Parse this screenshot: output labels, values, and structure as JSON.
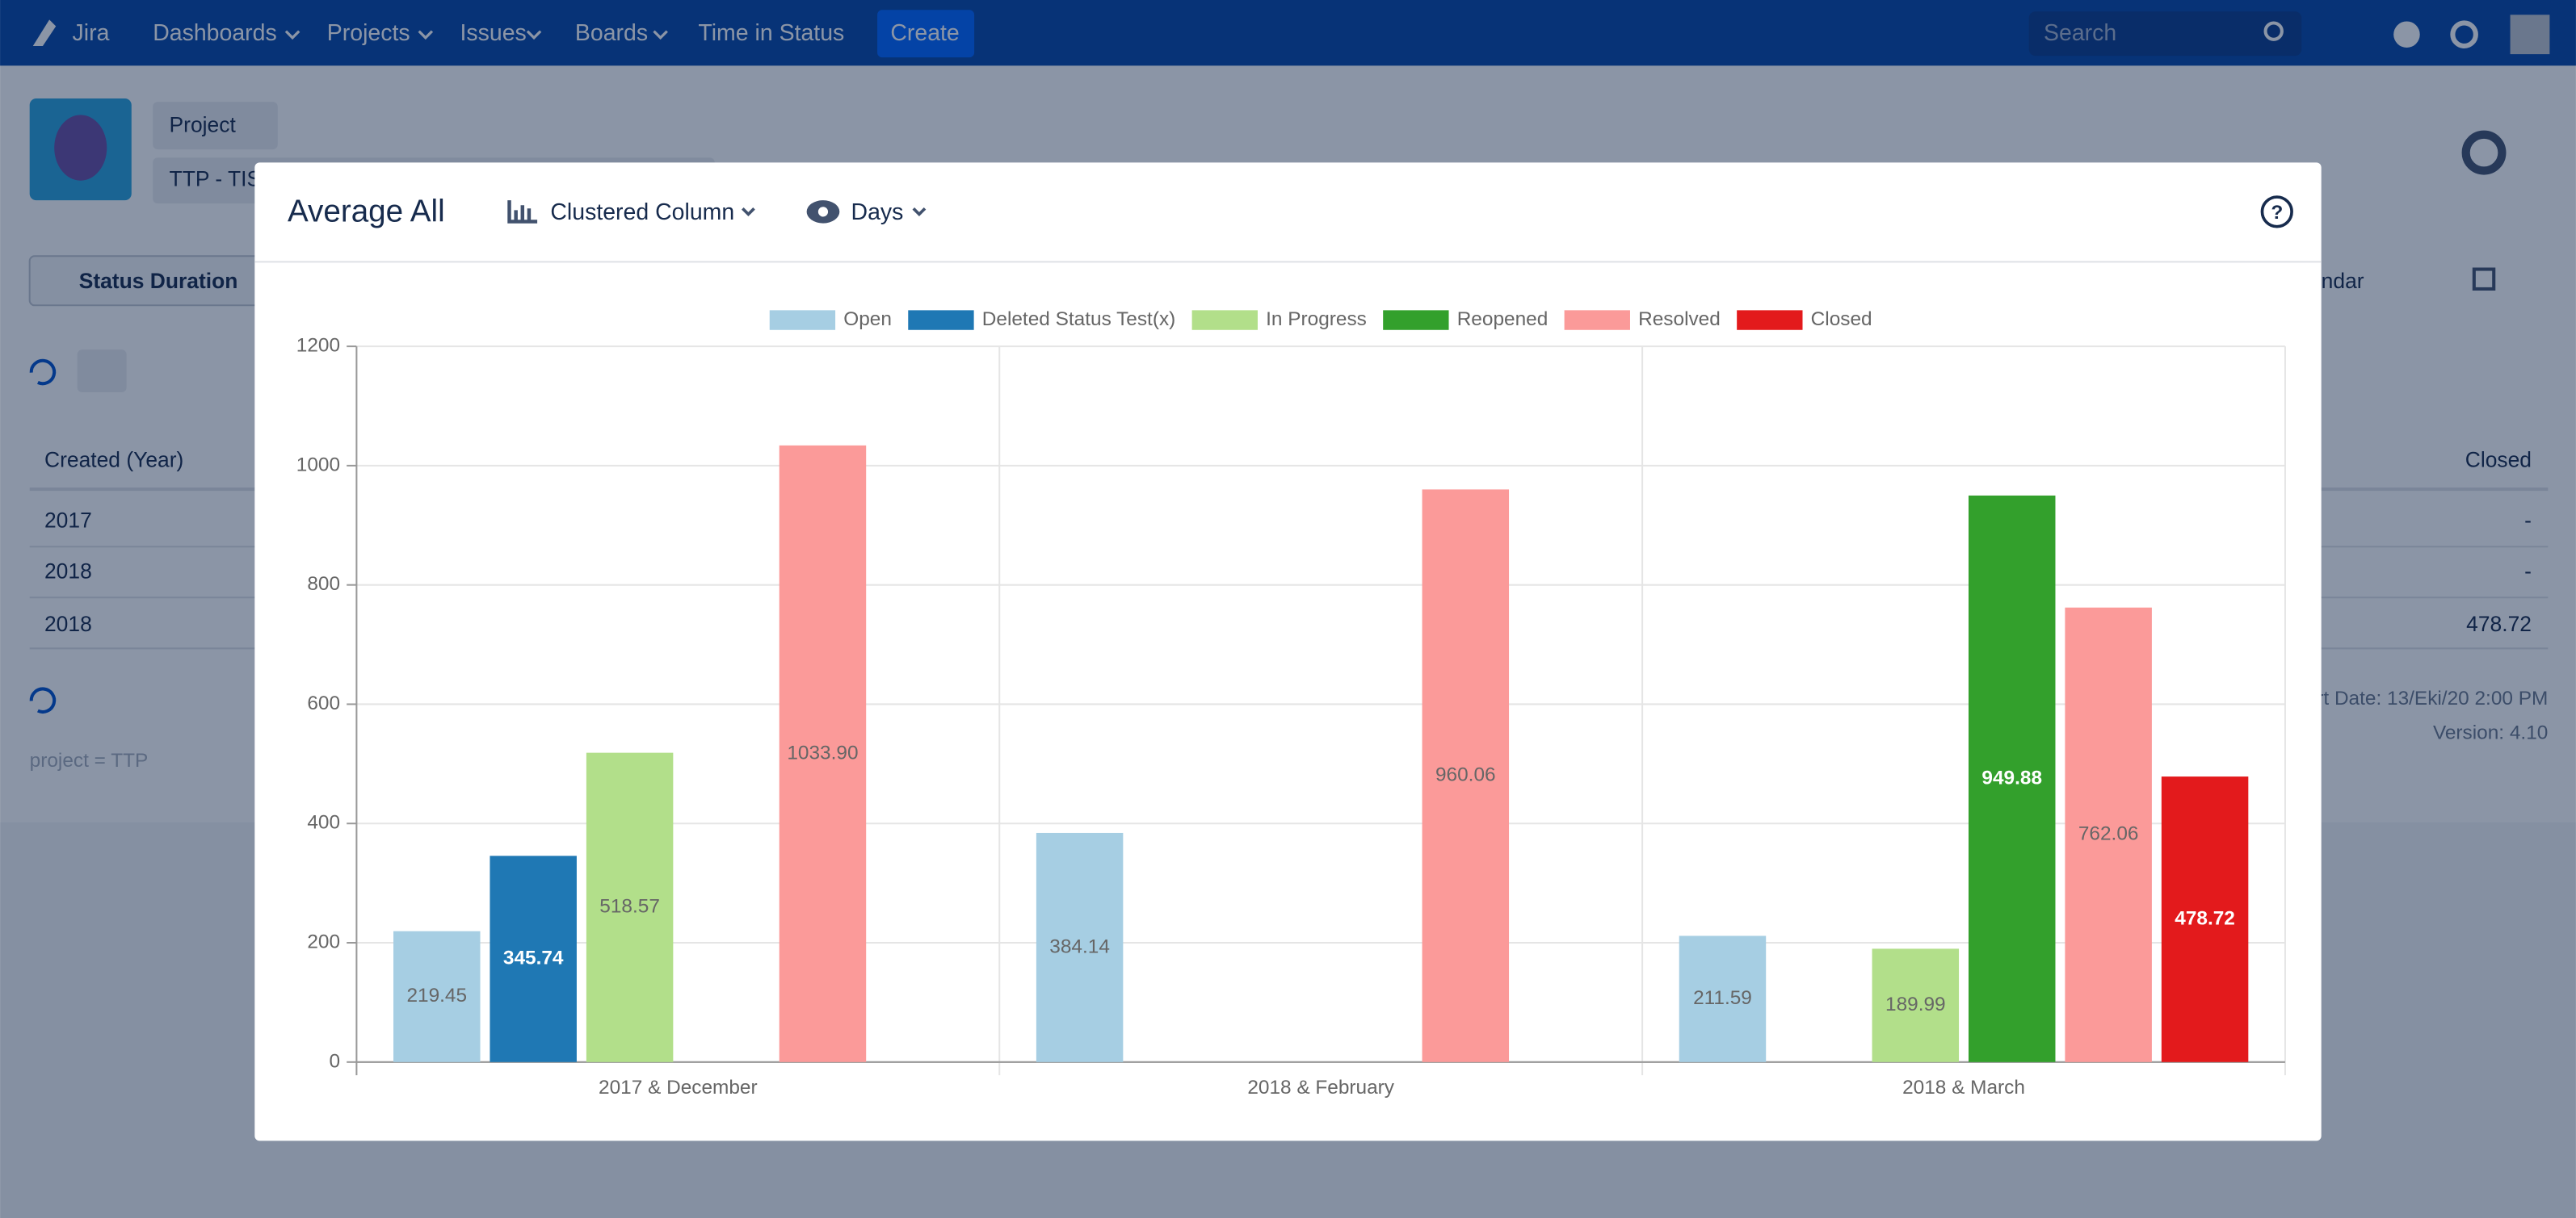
{
  "nav": {
    "logo": "Jira",
    "items": [
      "Dashboards",
      "Projects",
      "Issues",
      "Boards",
      "Time in Status"
    ],
    "create": "Create",
    "search": "Search"
  },
  "page": {
    "project_button": "Project",
    "project_name": "TTP - TIS",
    "status_button": "Status Duration",
    "calendar_button": "ndar",
    "table": {
      "headers": [
        "Created (Year)",
        "Closed"
      ],
      "rows": [
        [
          "2017",
          "-"
        ],
        [
          "2018",
          "-"
        ],
        [
          "2018",
          "478.72"
        ]
      ]
    },
    "report_date": "rt Date: 13/Eki/20 2:00 PM",
    "version": "Version: 4.10",
    "query": "project = TTP"
  },
  "modal": {
    "title": "Average All",
    "chart_type": "Clustered Column",
    "unit": "Days"
  },
  "chart_data": {
    "type": "bar",
    "legend": "top",
    "grid": true,
    "categories": [
      "2017 & December",
      "2018 & February",
      "2018 & March"
    ],
    "ylim": [
      0,
      1200
    ],
    "yticks": [
      0,
      200,
      400,
      600,
      800,
      1000,
      1200
    ],
    "series": [
      {
        "name": "Open",
        "color": "#a6cee3",
        "values": [
          219.45,
          384.14,
          211.59
        ],
        "value_labels": [
          "219.45",
          "384.14",
          "211.59"
        ]
      },
      {
        "name": "Deleted Status Test(x)",
        "color": "#1f78b4",
        "values": [
          345.74,
          null,
          null
        ],
        "value_labels": [
          "345.74",
          null,
          null
        ]
      },
      {
        "name": "In Progress",
        "color": "#b2df8a",
        "values": [
          518.57,
          null,
          189.99
        ],
        "value_labels": [
          "518.57",
          null,
          "189.99"
        ]
      },
      {
        "name": "Reopened",
        "color": "#33a02c",
        "values": [
          null,
          null,
          949.88
        ],
        "value_labels": [
          null,
          null,
          "949.88"
        ]
      },
      {
        "name": "Resolved",
        "color": "#fb9a99",
        "values": [
          1033.9,
          960.06,
          762.06
        ],
        "value_labels": [
          "1033.90",
          "960.06",
          "762.06"
        ]
      },
      {
        "name": "Closed",
        "color": "#e31a1c",
        "values": [
          null,
          null,
          478.72
        ],
        "value_labels": [
          null,
          null,
          "478.72"
        ]
      }
    ]
  }
}
